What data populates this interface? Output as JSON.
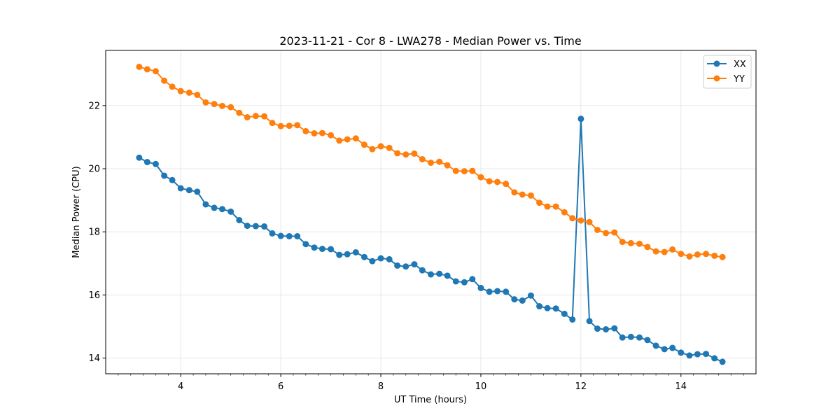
{
  "chart_data": {
    "type": "line",
    "title": "2023-11-21 - Cor 8 - LWA278 - Median Power vs. Time",
    "xlabel": "UT Time (hours)",
    "ylabel": "Median Power (CPU)",
    "xlim": [
      2.5,
      15.5
    ],
    "ylim": [
      13.5,
      23.75
    ],
    "xticks": [
      4,
      6,
      8,
      10,
      12,
      14
    ],
    "xtick_labels": [
      "4",
      "6",
      "8",
      "10",
      "12",
      "14"
    ],
    "yticks": [
      14,
      16,
      18,
      20,
      22
    ],
    "ytick_labels": [
      "14",
      "16",
      "18",
      "20",
      "22"
    ],
    "grid": true,
    "legend_position": "top-right",
    "x": [
      3.17,
      3.33,
      3.5,
      3.67,
      3.83,
      4.0,
      4.17,
      4.33,
      4.5,
      4.67,
      4.83,
      5.0,
      5.17,
      5.33,
      5.5,
      5.67,
      5.83,
      6.0,
      6.17,
      6.33,
      6.5,
      6.67,
      6.83,
      7.0,
      7.17,
      7.33,
      7.5,
      7.67,
      7.83,
      8.0,
      8.17,
      8.33,
      8.5,
      8.67,
      8.83,
      9.0,
      9.17,
      9.33,
      9.5,
      9.67,
      9.83,
      10.0,
      10.17,
      10.33,
      10.5,
      10.67,
      10.83,
      11.0,
      11.17,
      11.33,
      11.5,
      11.67,
      11.83,
      12.0,
      12.17,
      12.33,
      12.5,
      12.67,
      12.83,
      13.0,
      13.17,
      13.33,
      13.5,
      13.67,
      13.83,
      14.0,
      14.17,
      14.33,
      14.5,
      14.67,
      14.83
    ],
    "series": [
      {
        "name": "XX",
        "color": "#1f77b4",
        "values": [
          20.35,
          20.21,
          20.15,
          19.78,
          19.64,
          19.38,
          19.32,
          19.27,
          18.87,
          18.76,
          18.72,
          18.64,
          18.37,
          18.19,
          18.18,
          18.17,
          17.95,
          17.87,
          17.86,
          17.86,
          17.61,
          17.5,
          17.46,
          17.45,
          17.27,
          17.29,
          17.35,
          17.2,
          17.07,
          17.16,
          17.13,
          16.93,
          16.9,
          16.97,
          16.78,
          16.65,
          16.67,
          16.61,
          16.43,
          16.4,
          16.5,
          16.22,
          16.1,
          16.12,
          16.1,
          15.86,
          15.82,
          15.98,
          15.64,
          15.58,
          15.57,
          15.4,
          15.22,
          21.58,
          15.17,
          14.93,
          14.91,
          14.94,
          14.65,
          14.67,
          14.65,
          14.57,
          14.39,
          14.28,
          14.32,
          14.17,
          14.08,
          14.12,
          14.13,
          13.99,
          13.88
        ]
      },
      {
        "name": "YY",
        "color": "#ff7f0e",
        "values": [
          23.23,
          23.15,
          23.09,
          22.79,
          22.6,
          22.46,
          22.41,
          22.34,
          22.1,
          22.05,
          21.99,
          21.95,
          21.77,
          21.63,
          21.67,
          21.66,
          21.45,
          21.35,
          21.36,
          21.38,
          21.19,
          21.12,
          21.13,
          21.06,
          20.89,
          20.93,
          20.96,
          20.76,
          20.62,
          20.71,
          20.66,
          20.49,
          20.45,
          20.48,
          20.3,
          20.19,
          20.22,
          20.11,
          19.93,
          19.92,
          19.93,
          19.73,
          19.6,
          19.58,
          19.52,
          19.25,
          19.18,
          19.15,
          18.92,
          18.8,
          18.8,
          18.62,
          18.43,
          18.36,
          18.31,
          18.06,
          17.96,
          17.98,
          17.68,
          17.64,
          17.62,
          17.52,
          17.38,
          17.36,
          17.44,
          17.3,
          17.22,
          17.28,
          17.3,
          17.24,
          17.2
        ]
      }
    ]
  }
}
